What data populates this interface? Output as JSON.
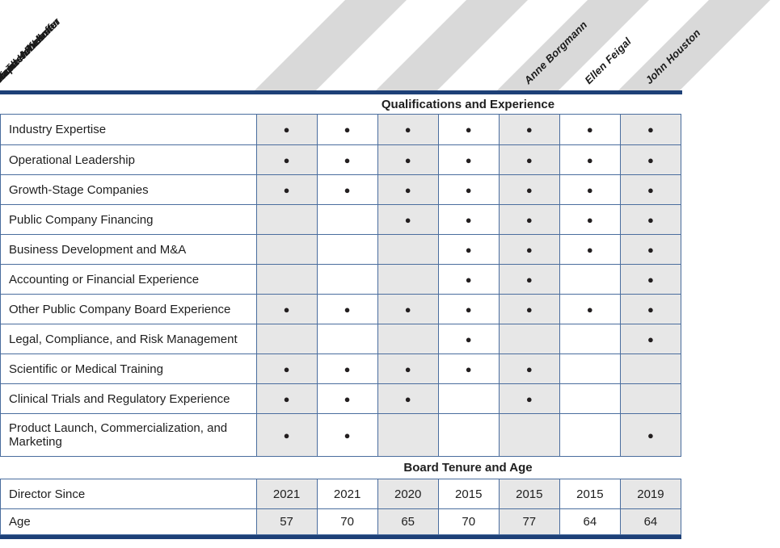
{
  "header": {
    "names": [
      "Anne Borgmann",
      "Ellen Feigal",
      "John Houston",
      "Elaine Jones",
      "David Kabakoff",
      "Michael Richman",
      "Stephen Webster"
    ]
  },
  "sections": {
    "qualifications_title": "Qualifications and Experience",
    "tenure_title": "Board Tenure and Age"
  },
  "table": {
    "dot_glyph": "●",
    "qual_rows": [
      {
        "label": "Industry Expertise",
        "cells": [
          "●",
          "●",
          "●",
          "●",
          "●",
          "●",
          "●"
        ]
      },
      {
        "label": "Operational Leadership",
        "cells": [
          "●",
          "●",
          "●",
          "●",
          "●",
          "●",
          "●"
        ]
      },
      {
        "label": "Growth-Stage Companies",
        "cells": [
          "●",
          "●",
          "●",
          "●",
          "●",
          "●",
          "●"
        ]
      },
      {
        "label": "Public Company Financing",
        "cells": [
          "",
          "",
          "●",
          "●",
          "●",
          "●",
          "●"
        ]
      },
      {
        "label": "Business Development and M&A",
        "cells": [
          "",
          "",
          "",
          "●",
          "●",
          "●",
          "●"
        ]
      },
      {
        "label": "Accounting or Financial Experience",
        "cells": [
          "",
          "",
          "",
          "●",
          "●",
          "",
          "●"
        ]
      },
      {
        "label": "Other Public Company Board Experience",
        "cells": [
          "●",
          "●",
          "●",
          "●",
          "●",
          "●",
          "●"
        ]
      },
      {
        "label": "Legal, Compliance, and Risk Management",
        "cells": [
          "",
          "",
          "",
          "●",
          "",
          "",
          "●"
        ]
      },
      {
        "label": "Scientific or Medical Training",
        "cells": [
          "●",
          "●",
          "●",
          "●",
          "●",
          "",
          ""
        ]
      },
      {
        "label": "Clinical Trials and Regulatory Experience",
        "cells": [
          "●",
          "●",
          "●",
          "",
          "●",
          "",
          ""
        ]
      },
      {
        "label": "Product Launch, Commercialization, and Marketing",
        "cells": [
          "●",
          "●",
          "",
          "",
          "",
          "",
          "●"
        ]
      }
    ],
    "tenure_rows": [
      {
        "label": "Director Since",
        "cells": [
          "2021",
          "2021",
          "2020",
          "2015",
          "2015",
          "2015",
          "2019"
        ]
      },
      {
        "label": "Age",
        "cells": [
          "57",
          "70",
          "65",
          "70",
          "77",
          "64",
          "64"
        ]
      }
    ]
  },
  "colors": {
    "accent_line": "#1d4077",
    "grid_border": "#4a6d9e",
    "shaded_column": "#e7e7e7",
    "header_band": "#d9d9d9",
    "dot": "#231f20"
  }
}
